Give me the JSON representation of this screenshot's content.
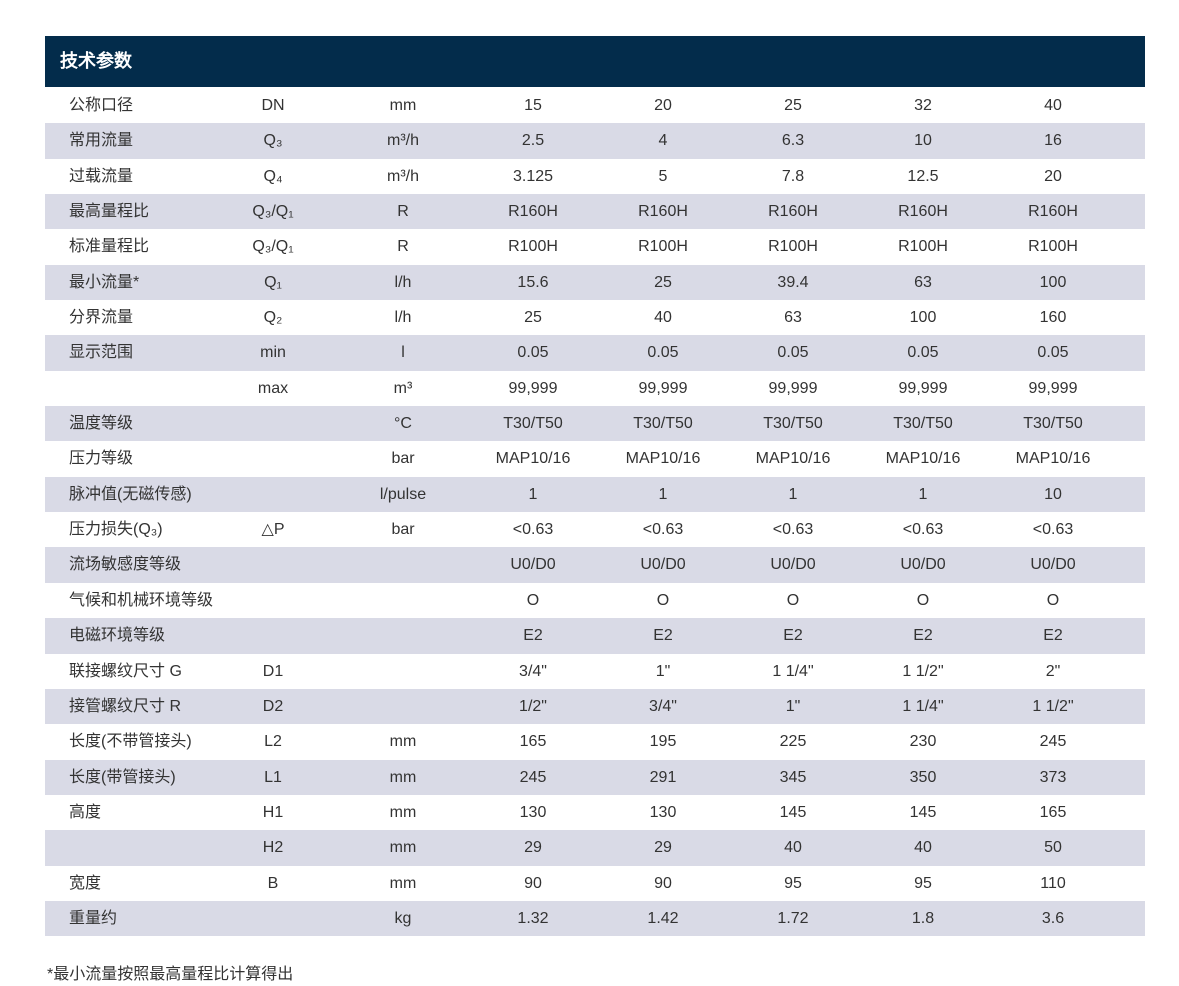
{
  "header": {
    "title": "技术参数"
  },
  "table": {
    "rows": [
      [
        "公称口径",
        "DN",
        "mm",
        "15",
        "20",
        "25",
        "32",
        "40"
      ],
      [
        "常用流量",
        "Q₃",
        "m³/h",
        "2.5",
        "4",
        "6.3",
        "10",
        "16"
      ],
      [
        "过载流量",
        "Q₄",
        "m³/h",
        "3.125",
        "5",
        "7.8",
        "12.5",
        "20"
      ],
      [
        "最高量程比",
        "Q₃/Q₁",
        "R",
        "R160H",
        "R160H",
        "R160H",
        "R160H",
        "R160H"
      ],
      [
        "标准量程比",
        "Q₃/Q₁",
        "R",
        "R100H",
        "R100H",
        "R100H",
        "R100H",
        "R100H"
      ],
      [
        "最小流量*",
        "Q₁",
        "l/h",
        "15.6",
        "25",
        "39.4",
        "63",
        "100"
      ],
      [
        "分界流量",
        "Q₂",
        "l/h",
        "25",
        "40",
        "63",
        "100",
        "160"
      ],
      [
        "显示范围",
        "min",
        "l",
        "0.05",
        "0.05",
        "0.05",
        "0.05",
        "0.05"
      ],
      [
        null,
        "max",
        "m³",
        "99,999",
        "99,999",
        "99,999",
        "99,999",
        "99,999"
      ],
      [
        "温度等级",
        null,
        "°C",
        "T30/T50",
        "T30/T50",
        "T30/T50",
        "T30/T50",
        "T30/T50"
      ],
      [
        "压力等级",
        null,
        "bar",
        "MAP10/16",
        "MAP10/16",
        "MAP10/16",
        "MAP10/16",
        "MAP10/16"
      ],
      [
        "脉冲值(无磁传感)",
        null,
        "l/pulse",
        "1",
        "1",
        "1",
        "1",
        "10"
      ],
      [
        "压力损失(Q₃)",
        "△P",
        "bar",
        "<0.63",
        "<0.63",
        "<0.63",
        "<0.63",
        "<0.63"
      ],
      [
        "流场敏感度等级",
        null,
        null,
        "U0/D0",
        "U0/D0",
        "U0/D0",
        "U0/D0",
        "U0/D0"
      ],
      [
        "气候和机械环境等级",
        null,
        null,
        "O",
        "O",
        "O",
        "O",
        "O"
      ],
      [
        "电磁环境等级",
        null,
        null,
        "E2",
        "E2",
        "E2",
        "E2",
        "E2"
      ],
      [
        "联接螺纹尺寸 G",
        "D1",
        null,
        "3/4\"",
        "1\"",
        "1 1/4\"",
        "1 1/2\"",
        "2\""
      ],
      [
        "接管螺纹尺寸 R",
        "D2",
        null,
        "1/2\"",
        "3/4\"",
        "1\"",
        "1 1/4\"",
        "1 1/2\""
      ],
      [
        "长度(不带管接头)",
        "L2",
        "mm",
        "165",
        "195",
        "225",
        "230",
        "245"
      ],
      [
        "长度(带管接头)",
        "L1",
        "mm",
        "245",
        "291",
        "345",
        "350",
        "373"
      ],
      [
        "高度",
        "H1",
        "mm",
        "130",
        "130",
        "145",
        "145",
        "165"
      ],
      [
        null,
        "H2",
        "mm",
        "29",
        "29",
        "40",
        "40",
        "50"
      ],
      [
        "宽度",
        "B",
        "mm",
        "90",
        "90",
        "95",
        "95",
        "110"
      ],
      [
        "重量约",
        null,
        "kg",
        "1.32",
        "1.42",
        "1.72",
        "1.8",
        "3.6"
      ]
    ]
  },
  "footnote": "*最小流量按照最高量程比计算得出"
}
